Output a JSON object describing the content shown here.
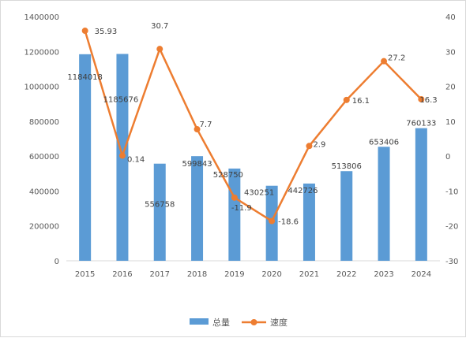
{
  "chart_data": {
    "type": "bar",
    "categories": [
      "2015",
      "2016",
      "2017",
      "2018",
      "2019",
      "2020",
      "2021",
      "2022",
      "2023",
      "2024"
    ],
    "series": [
      {
        "name": "总量",
        "type": "bar",
        "axis": "left",
        "color": "#5b9bd5",
        "values": [
          1184018,
          1185676,
          556758,
          599843,
          528750,
          430251,
          442726,
          513806,
          653406,
          760133
        ],
        "labels": [
          "1184018",
          "1185676",
          "556758",
          "599843",
          "528750",
          "430251",
          "442726",
          "513806",
          "653406",
          "760133"
        ]
      },
      {
        "name": "速度",
        "type": "line",
        "axis": "right",
        "color": "#ed7d31",
        "values": [
          35.93,
          0.14,
          30.7,
          7.7,
          -11.9,
          -18.6,
          2.9,
          16.1,
          27.2,
          16.3
        ],
        "labels": [
          "35.93",
          "0.14",
          "30.7",
          "7.7",
          "-11.9",
          "-18.6",
          "2.9",
          "16.1",
          "27.2",
          "16.3"
        ]
      }
    ],
    "left_axis": {
      "ylim": [
        0,
        1400000
      ],
      "ticks": [
        "0",
        "200000",
        "400000",
        "600000",
        "800000",
        "1000000",
        "1200000",
        "1400000"
      ]
    },
    "right_axis": {
      "ylim": [
        -30,
        40
      ],
      "ticks": [
        "-30",
        "-20",
        "-10",
        "0",
        "10",
        "20",
        "30",
        "40"
      ]
    },
    "grid": false,
    "legend": "bottom"
  }
}
